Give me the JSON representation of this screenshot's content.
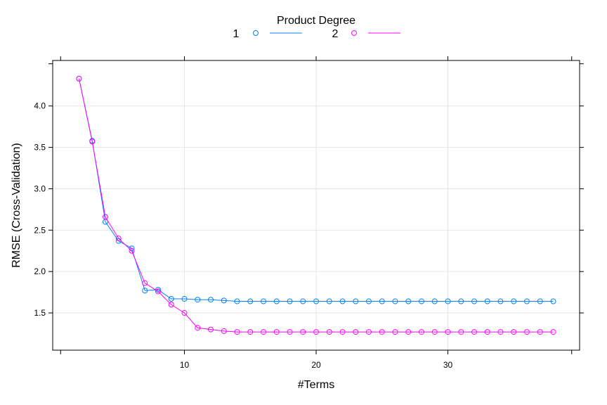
{
  "chart_data": {
    "type": "line",
    "xlabel": "#Terms",
    "ylabel": "RMSE (Cross-Validation)",
    "legend_title": "Product Degree",
    "legend_position": "top-center",
    "grid": true,
    "xlim": [
      0,
      40
    ],
    "ylim": [
      1.05,
      4.55
    ],
    "xticks": [
      10,
      20,
      30
    ],
    "yticks": [
      1.5,
      2.0,
      2.5,
      3.0,
      3.5,
      4.0
    ],
    "ytick_labels": [
      "1.5",
      "2.0",
      "2.5",
      "3.0",
      "3.5",
      "4.0"
    ],
    "x": [
      2,
      3,
      4,
      5,
      6,
      7,
      8,
      9,
      10,
      11,
      12,
      13,
      14,
      15,
      16,
      17,
      18,
      19,
      20,
      21,
      22,
      23,
      24,
      25,
      26,
      27,
      28,
      29,
      30,
      31,
      32,
      33,
      34,
      35,
      36,
      37,
      38
    ],
    "series": [
      {
        "name": "1",
        "color": "#0080ff",
        "values": [
          4.33,
          3.58,
          2.6,
          2.37,
          2.28,
          1.77,
          1.78,
          1.67,
          1.67,
          1.66,
          1.66,
          1.65,
          1.64,
          1.64,
          1.64,
          1.64,
          1.64,
          1.64,
          1.64,
          1.64,
          1.64,
          1.64,
          1.64,
          1.64,
          1.64,
          1.64,
          1.64,
          1.64,
          1.64,
          1.64,
          1.64,
          1.64,
          1.64,
          1.64,
          1.64,
          1.64,
          1.64
        ]
      },
      {
        "name": "2",
        "color": "#ff00ff",
        "values": [
          4.33,
          3.57,
          2.66,
          2.4,
          2.25,
          1.86,
          1.76,
          1.6,
          1.5,
          1.32,
          1.3,
          1.28,
          1.27,
          1.27,
          1.27,
          1.27,
          1.27,
          1.27,
          1.27,
          1.27,
          1.27,
          1.27,
          1.27,
          1.27,
          1.27,
          1.27,
          1.27,
          1.27,
          1.27,
          1.27,
          1.27,
          1.27,
          1.27,
          1.27,
          1.27,
          1.27,
          1.27
        ]
      }
    ]
  }
}
